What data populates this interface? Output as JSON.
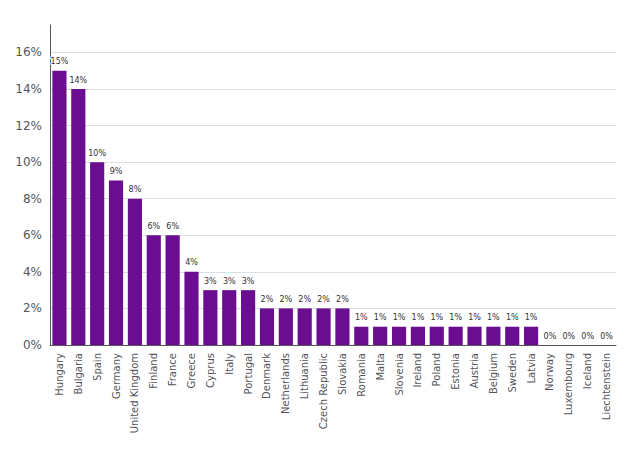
{
  "chart_data": {
    "type": "bar",
    "categories": [
      "Hungary",
      "Bulgaria",
      "Spain",
      "Germany",
      "United Kingdom",
      "Finland",
      "France",
      "Greece",
      "Cyprus",
      "Italy",
      "Portugal",
      "Denmark",
      "Netherlands",
      "Lithuania",
      "Czech Republic",
      "Slovakia",
      "Romania",
      "Malta",
      "Slovenia",
      "Ireland",
      "Poland",
      "Estonia",
      "Austria",
      "Belgium",
      "Sweden",
      "Latvia",
      "Norway",
      "Luxembourg",
      "Iceland",
      "Liechtenstein"
    ],
    "values": [
      15,
      14,
      10,
      9,
      8,
      6,
      6,
      4,
      3,
      3,
      3,
      2,
      2,
      2,
      2,
      2,
      1,
      1,
      1,
      1,
      1,
      1,
      1,
      1,
      1,
      1,
      0,
      0,
      0,
      0
    ],
    "value_labels": [
      "15%",
      "14%",
      "10%",
      "9%",
      "8%",
      "6%",
      "6%",
      "4%",
      "3%",
      "3%",
      "3%",
      "2%",
      "2%",
      "2%",
      "2%",
      "2%",
      "1%",
      "1%",
      "1%",
      "1%",
      "1%",
      "1%",
      "1%",
      "1%",
      "1%",
      "1%",
      "0%",
      "0%",
      "0%",
      "0%"
    ],
    "data_labels": true,
    "color": "#6a0d91",
    "ylim": [
      0,
      17.5
    ],
    "yticks": [
      {
        "value": 0,
        "label": "0%"
      },
      {
        "value": 2,
        "label": "2%"
      },
      {
        "value": 4,
        "label": "4%"
      },
      {
        "value": 6,
        "label": "6%"
      },
      {
        "value": 8,
        "label": "8%"
      },
      {
        "value": 10,
        "label": "10%"
      },
      {
        "value": 12,
        "label": "12%"
      },
      {
        "value": 14,
        "label": "14%"
      },
      {
        "value": 16,
        "label": "16%"
      }
    ],
    "grid": true
  }
}
